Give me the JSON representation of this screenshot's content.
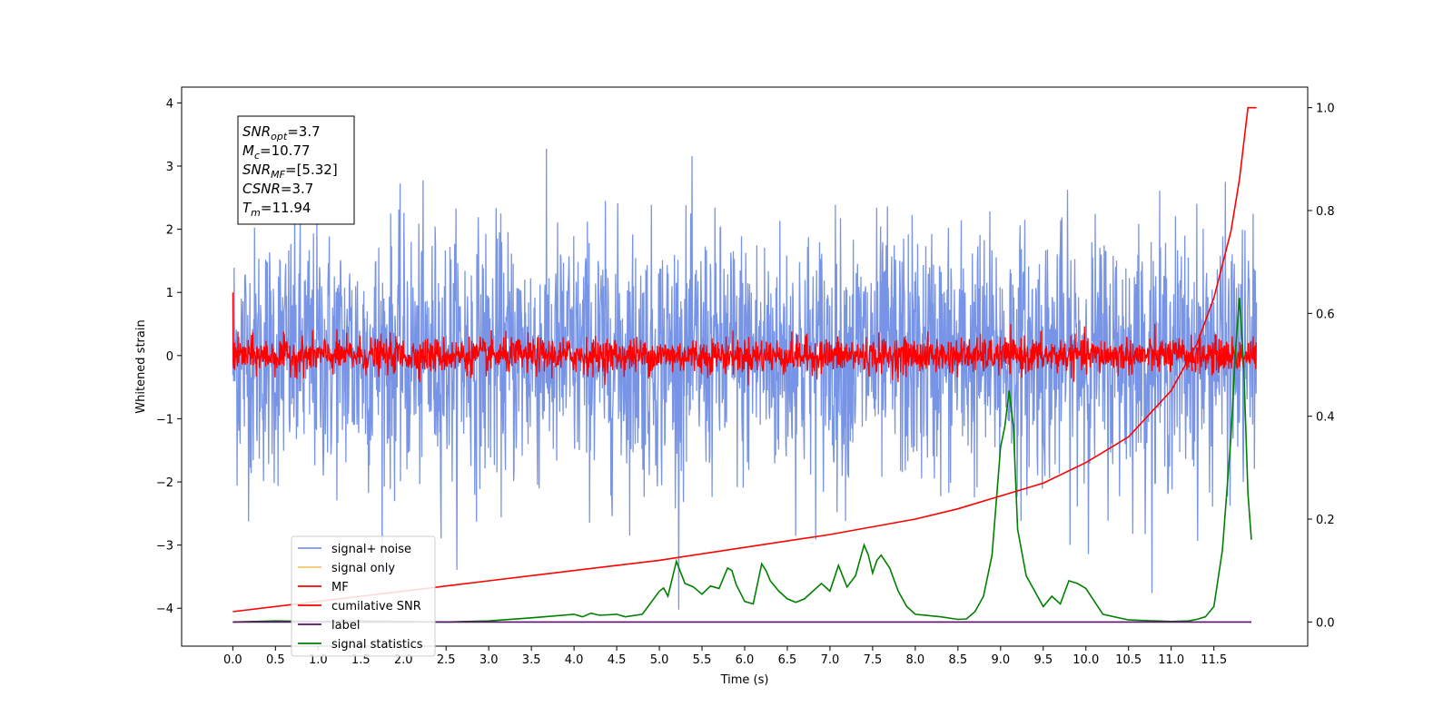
{
  "chart_data": {
    "type": "line",
    "xlabel": "Time (s)",
    "ylabel": "Whitened strain",
    "xlim": [
      -0.6,
      12.6
    ],
    "ylim_left": [
      -4.6,
      4.25
    ],
    "ylim_right": [
      -0.047,
      1.04
    ],
    "x_ticks": [
      "0.0",
      "0.5",
      "1.0",
      "1.5",
      "2.0",
      "2.5",
      "3.0",
      "3.5",
      "4.0",
      "4.5",
      "5.0",
      "5.5",
      "6.0",
      "6.5",
      "7.0",
      "7.5",
      "8.0",
      "8.5",
      "9.0",
      "9.5",
      "10.0",
      "10.5",
      "11.0",
      "11.5"
    ],
    "y_ticks_left": [
      "4",
      "3",
      "2",
      "1",
      "0",
      "−1",
      "−2",
      "−3",
      "−4"
    ],
    "y_ticks_right": [
      "1.0",
      "0.8",
      "0.6",
      "0.4",
      "0.2",
      "0.0"
    ],
    "grid": false,
    "legend_position": "lower-left",
    "info_box": {
      "lines": [
        {
          "sym": "SNR",
          "sub": "opt",
          "val": "=3.7"
        },
        {
          "sym": "M",
          "sub": "c",
          "val": "=10.77"
        },
        {
          "sym": "SNR",
          "sub": "MF",
          "val": "=[5.32]"
        },
        {
          "sym": "CSNR",
          "sub": "",
          "val": "=3.7"
        },
        {
          "sym": "T",
          "sub": "m",
          "val": "=11.94"
        }
      ]
    },
    "series": [
      {
        "name": "signal+ noise",
        "color": "#7894e6",
        "axis": "left",
        "description_values": {
          "x_range": [
            0.0,
            12.0
          ],
          "noise_std": 1.0,
          "max": 3.87,
          "min": -4.08
        }
      },
      {
        "name": "signal only",
        "color": "#f5c86b",
        "axis": "left"
      },
      {
        "name": "MF",
        "color": "#ff0000",
        "axis": "left"
      },
      {
        "name": "cumilative SNR",
        "color": "#ff0000",
        "axis": "right",
        "x": [
          0.0,
          1.0,
          2.0,
          3.0,
          4.0,
          5.0,
          6.0,
          7.0,
          8.0,
          8.5,
          9.0,
          9.5,
          10.0,
          10.5,
          11.0,
          11.3,
          11.5,
          11.7,
          11.8,
          11.85,
          11.9,
          11.94,
          12.0
        ],
        "y": [
          0.02,
          0.04,
          0.06,
          0.08,
          0.1,
          0.12,
          0.145,
          0.17,
          0.2,
          0.22,
          0.245,
          0.27,
          0.31,
          0.36,
          0.45,
          0.54,
          0.63,
          0.76,
          0.86,
          0.93,
          1.0,
          1.0,
          1.0
        ]
      },
      {
        "name": "label",
        "color": "#5b0f6b",
        "axis": "right",
        "x": [
          0.0,
          11.94
        ],
        "y": [
          0.0,
          0.0
        ]
      },
      {
        "name": "signal statistics",
        "color": "#008000",
        "axis": "right",
        "x": [
          0.0,
          0.5,
          1.0,
          1.5,
          2.0,
          2.5,
          3.0,
          3.5,
          4.0,
          4.1,
          4.2,
          4.3,
          4.5,
          4.6,
          4.8,
          5.0,
          5.05,
          5.1,
          5.2,
          5.3,
          5.4,
          5.5,
          5.6,
          5.7,
          5.8,
          5.85,
          5.9,
          6.0,
          6.1,
          6.2,
          6.25,
          6.3,
          6.4,
          6.5,
          6.6,
          6.7,
          6.8,
          6.9,
          7.0,
          7.1,
          7.2,
          7.3,
          7.4,
          7.45,
          7.5,
          7.55,
          7.6,
          7.7,
          7.8,
          7.9,
          8.0,
          8.3,
          8.5,
          8.6,
          8.7,
          8.8,
          8.9,
          9.0,
          9.05,
          9.1,
          9.15,
          9.2,
          9.3,
          9.4,
          9.5,
          9.6,
          9.7,
          9.8,
          9.9,
          10.0,
          10.2,
          10.5,
          11.0,
          11.2,
          11.3,
          11.4,
          11.5,
          11.6,
          11.7,
          11.75,
          11.8,
          11.85,
          11.9,
          11.94
        ],
        "y": [
          0.0,
          0.002,
          0.001,
          0.002,
          0.001,
          0.0,
          0.002,
          0.008,
          0.015,
          0.01,
          0.017,
          0.013,
          0.015,
          0.01,
          0.015,
          0.06,
          0.066,
          0.05,
          0.118,
          0.075,
          0.068,
          0.054,
          0.07,
          0.065,
          0.105,
          0.1,
          0.073,
          0.04,
          0.035,
          0.113,
          0.1,
          0.08,
          0.06,
          0.045,
          0.038,
          0.045,
          0.06,
          0.075,
          0.06,
          0.11,
          0.068,
          0.09,
          0.15,
          0.13,
          0.095,
          0.12,
          0.13,
          0.105,
          0.06,
          0.03,
          0.015,
          0.01,
          0.005,
          0.006,
          0.02,
          0.05,
          0.13,
          0.34,
          0.38,
          0.45,
          0.38,
          0.18,
          0.09,
          0.06,
          0.03,
          0.05,
          0.035,
          0.08,
          0.075,
          0.065,
          0.015,
          0.004,
          0.001,
          0.002,
          0.005,
          0.01,
          0.03,
          0.14,
          0.36,
          0.52,
          0.63,
          0.5,
          0.25,
          0.16
        ]
      }
    ]
  }
}
